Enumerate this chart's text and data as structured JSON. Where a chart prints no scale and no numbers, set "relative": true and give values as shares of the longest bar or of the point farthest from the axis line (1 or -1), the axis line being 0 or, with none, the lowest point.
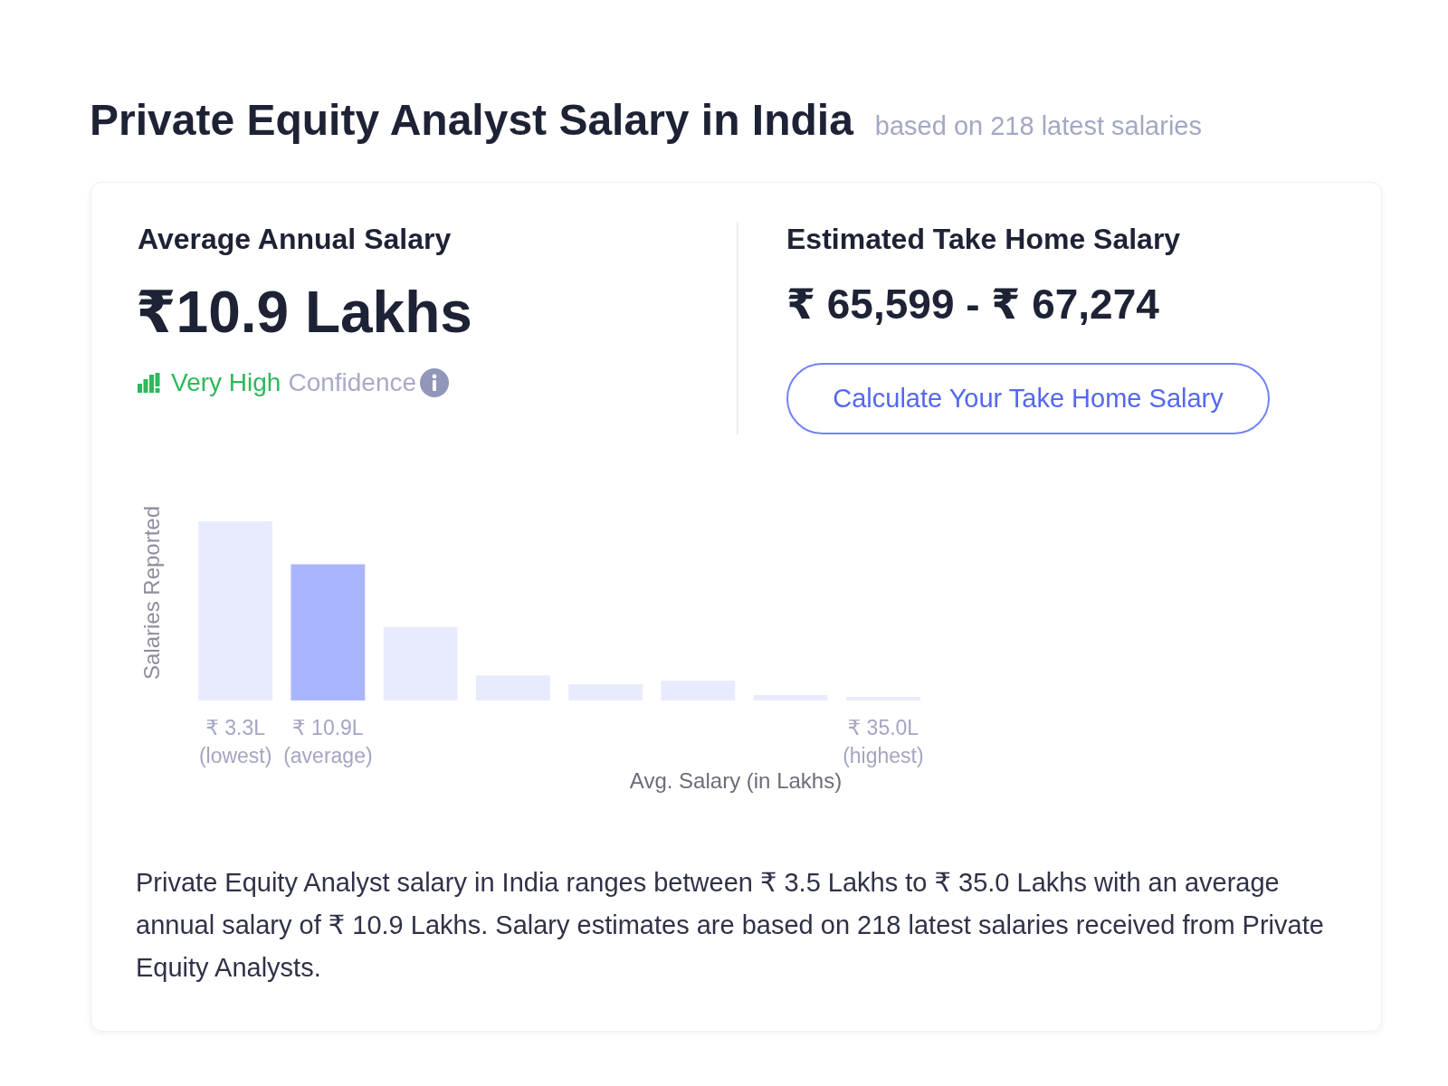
{
  "chart_data": [
    {
      "type": "other",
      "title": "Private Equity Analyst Salary in India",
      "subtitle": "based on 218 latest salaries",
      "annotations": [
        "Average Annual Salary",
        "₹10.9 Lakhs",
        "Very High",
        "Confidence",
        "Estimated Take Home Salary",
        "₹ 65,599 - ₹ 67,274",
        "Calculate Your Take Home Salary"
      ]
    },
    {
      "type": "bar",
      "relative": true,
      "categories": [
        "₹ 3.3L\n(lowest)",
        "₹ 10.9L\n(average)",
        null,
        null,
        null,
        null,
        null,
        "₹ 35.0L\n(highest)"
      ],
      "values": [
        1,
        0.76,
        0.41,
        0.14,
        0.09,
        0.11,
        0.03,
        0.02
      ],
      "colors": [
        "#e8ebfd",
        "#a9b5fc",
        "#e8ebfd",
        "#e8ebfd",
        "#e8ebfd",
        "#e8ebfd",
        "#e8ebfd",
        "#e8ebfd"
      ],
      "xlabel": "Avg. Salary (in Lakhs)",
      "ylabel": "Salaries Reported",
      "annotations": [
        "Private Equity Analyst salary in India ranges between ₹ 3.5 Lakhs to ₹ 35.0 Lakhs with an average annual salary of ₹ 10.9 Lakhs. Salary estimates are based on 218 latest salaries received from Private Equity Analysts."
      ]
    }
  ]
}
